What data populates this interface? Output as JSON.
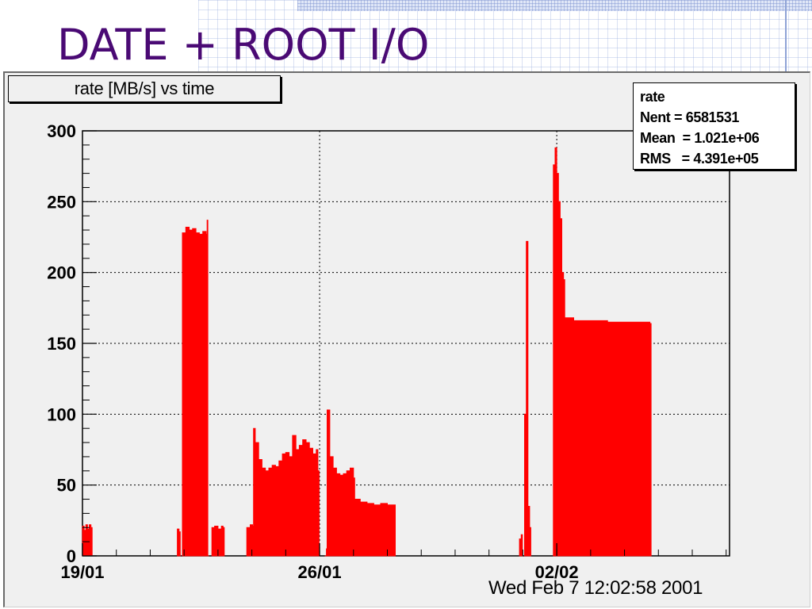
{
  "slide": {
    "title": "DATE + ROOT I/O"
  },
  "histogram": {
    "title": "rate [MB/s] vs time",
    "stats": {
      "name": "rate",
      "rows": [
        {
          "label": "Nent",
          "value": "= 6581531"
        },
        {
          "label": "Mean ",
          "value": "= 1.021e+06"
        },
        {
          "label": "RMS  ",
          "value": "= 4.391e+05"
        }
      ]
    },
    "date_stamp": "Wed Feb  7 12:02:58 2001"
  },
  "chart_data": {
    "type": "bar",
    "title": "rate [MB/s] vs time",
    "xlabel": "",
    "ylabel": "",
    "ylim": [
      0,
      300
    ],
    "y_ticks": [
      0,
      50,
      100,
      150,
      200,
      250,
      300
    ],
    "x_tick_labels": [
      {
        "label": "19/01",
        "day": 0
      },
      {
        "label": "26/01",
        "day": 7
      },
      {
        "label": "02/02",
        "day": 14
      }
    ],
    "xlim_days": [
      0,
      19.1
    ],
    "grid": true,
    "bar_color": "#ff0000",
    "series": [
      {
        "segments": [
          {
            "start": 0.0,
            "end": 0.25,
            "points": [
              [
                0.0,
                21
              ],
              [
                0.05,
                18
              ],
              [
                0.1,
                22
              ],
              [
                0.15,
                19
              ],
              [
                0.2,
                22
              ],
              [
                0.25,
                20
              ]
            ]
          },
          {
            "start": 2.8,
            "end": 2.85,
            "points": [
              [
                2.8,
                19
              ],
              [
                2.85,
                17
              ]
            ]
          },
          {
            "start": 2.95,
            "end": 3.65,
            "points": [
              [
                2.95,
                228
              ],
              [
                3.05,
                232
              ],
              [
                3.15,
                230
              ],
              [
                3.25,
                231
              ],
              [
                3.35,
                228
              ],
              [
                3.45,
                227
              ],
              [
                3.55,
                229
              ],
              [
                3.65,
                227
              ]
            ]
          },
          {
            "start": 3.68,
            "end": 3.7,
            "points": [
              [
                3.68,
                237
              ],
              [
                3.7,
                0
              ]
            ]
          },
          {
            "start": 3.82,
            "end": 4.15,
            "points": [
              [
                3.82,
                20
              ],
              [
                3.9,
                21
              ],
              [
                4.0,
                19
              ],
              [
                4.1,
                21
              ],
              [
                4.15,
                20
              ]
            ]
          },
          {
            "start": 4.85,
            "end": 5.02,
            "points": [
              [
                4.85,
                20
              ],
              [
                4.95,
                22
              ],
              [
                5.02,
                21
              ]
            ]
          },
          {
            "start": 5.05,
            "end": 6.95,
            "points": [
              [
                5.05,
                90
              ],
              [
                5.1,
                80
              ],
              [
                5.2,
                68
              ],
              [
                5.3,
                62
              ],
              [
                5.4,
                60
              ],
              [
                5.5,
                62
              ],
              [
                5.6,
                64
              ],
              [
                5.7,
                63
              ],
              [
                5.8,
                67
              ],
              [
                5.9,
                72
              ],
              [
                6.0,
                73
              ],
              [
                6.1,
                70
              ],
              [
                6.2,
                85
              ],
              [
                6.3,
                75
              ],
              [
                6.4,
                78
              ],
              [
                6.5,
                82
              ],
              [
                6.6,
                80
              ],
              [
                6.7,
                76
              ],
              [
                6.8,
                72
              ],
              [
                6.9,
                75
              ],
              [
                6.95,
                60
              ]
            ]
          },
          {
            "start": 7.15,
            "end": 7.2,
            "points": [
              [
                7.15,
                0
              ],
              [
                7.2,
                5
              ]
            ]
          },
          {
            "start": 7.22,
            "end": 8.0,
            "points": [
              [
                7.22,
                103
              ],
              [
                7.3,
                70
              ],
              [
                7.4,
                62
              ],
              [
                7.5,
                58
              ],
              [
                7.6,
                57
              ],
              [
                7.7,
                58
              ],
              [
                7.8,
                60
              ],
              [
                7.9,
                62
              ],
              [
                8.0,
                55
              ]
            ]
          },
          {
            "start": 8.0,
            "end": 9.2,
            "points": [
              [
                8.05,
                40
              ],
              [
                8.2,
                38
              ],
              [
                8.4,
                37
              ],
              [
                8.6,
                36
              ],
              [
                8.8,
                37
              ],
              [
                9.0,
                36
              ],
              [
                9.2,
                36
              ]
            ]
          },
          {
            "start": 12.9,
            "end": 12.95,
            "points": [
              [
                12.9,
                12
              ],
              [
                12.95,
                15
              ]
            ]
          },
          {
            "start": 13.05,
            "end": 13.2,
            "points": [
              [
                13.05,
                100
              ],
              [
                13.1,
                222
              ],
              [
                13.15,
                35
              ],
              [
                13.2,
                20
              ]
            ]
          },
          {
            "start": 13.9,
            "end": 14.2,
            "points": [
              [
                13.9,
                276
              ],
              [
                13.95,
                288
              ],
              [
                14.0,
                270
              ],
              [
                14.05,
                250
              ],
              [
                14.1,
                238
              ],
              [
                14.15,
                200
              ],
              [
                14.2,
                195
              ]
            ]
          },
          {
            "start": 14.2,
            "end": 16.75,
            "points": [
              [
                14.25,
                168
              ],
              [
                14.5,
                166
              ],
              [
                15.0,
                166
              ],
              [
                15.5,
                165
              ],
              [
                16.0,
                165
              ],
              [
                16.5,
                165
              ],
              [
                16.75,
                164
              ]
            ]
          }
        ]
      }
    ]
  }
}
